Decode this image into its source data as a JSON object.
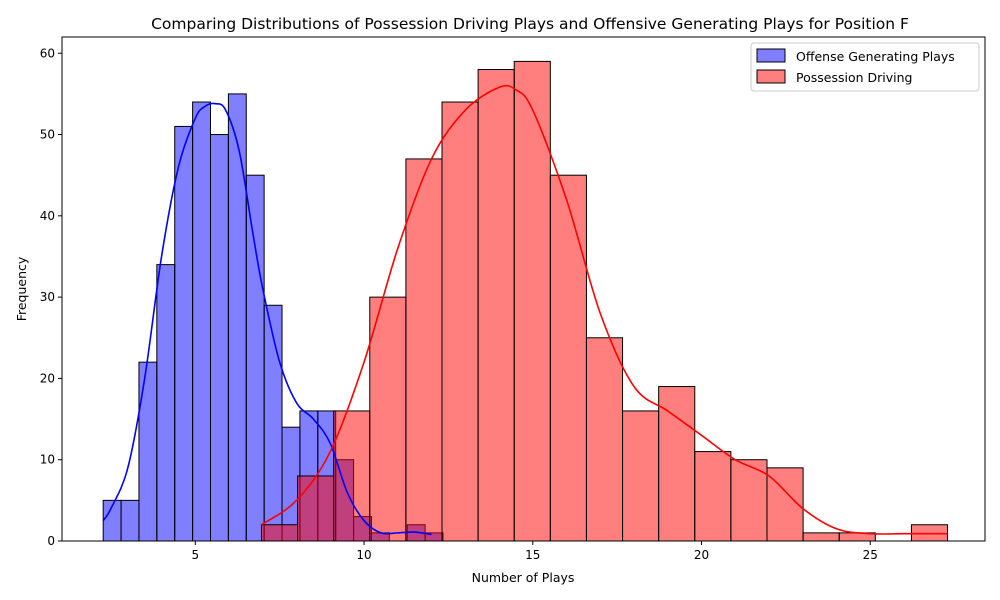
{
  "chart_data": {
    "type": "histogram",
    "title": "Comparing Distributions of Possession Driving Plays and Offensive Generating Plays for Position F",
    "xlabel": "Number of Plays",
    "ylabel": "Frequency",
    "xlim": [
      1.05,
      28.4
    ],
    "ylim": [
      0,
      62
    ],
    "xticks": [
      5,
      10,
      15,
      20,
      25
    ],
    "yticks": [
      0,
      10,
      20,
      30,
      40,
      50,
      60
    ],
    "legend_position": "upper right",
    "series": [
      {
        "name": "Offense Generating Plays",
        "color": "#0000ff",
        "bin_edges": [
          2.27,
          2.8,
          3.33,
          3.86,
          4.39,
          4.92,
          5.45,
          5.98,
          6.51,
          7.04,
          7.57,
          8.1,
          8.63,
          9.16,
          9.69,
          10.22,
          10.75,
          11.28,
          11.81,
          12.34
        ],
        "counts": [
          5,
          5,
          22,
          34,
          51,
          54,
          50,
          55,
          45,
          29,
          14,
          16,
          16,
          10,
          3,
          1,
          0,
          2,
          1
        ],
        "kde_x": [
          2.27,
          2.5,
          3,
          3.5,
          4,
          4.5,
          5,
          5.3,
          5.6,
          5.9,
          6.3,
          6.7,
          7.0,
          7.5,
          8.0,
          8.5,
          9.0,
          9.5,
          10.0,
          10.5,
          11.0,
          11.5,
          12.0
        ],
        "kde_y": [
          2.5,
          4,
          9,
          20,
          35,
          46,
          52,
          53.5,
          53.8,
          53,
          48,
          38,
          31,
          22,
          17,
          15,
          12,
          6,
          2.5,
          1,
          1,
          1.1,
          0.8
        ]
      },
      {
        "name": "Possession Driving",
        "color": "#ff0000",
        "bin_edges": [
          6.96,
          8.03,
          9.1,
          10.17,
          11.24,
          12.31,
          13.38,
          14.45,
          15.52,
          16.59,
          17.66,
          18.73,
          19.8,
          20.87,
          21.94,
          23.01,
          24.08,
          25.15,
          26.22,
          27.29
        ],
        "counts": [
          2,
          8,
          16,
          30,
          47,
          54,
          58,
          59,
          45,
          25,
          16,
          19,
          11,
          10,
          9,
          1,
          1,
          0,
          2
        ],
        "kde_x": [
          6.96,
          8,
          9,
          10,
          11,
          12,
          13,
          14,
          14.5,
          15,
          16,
          17,
          18,
          19,
          20,
          21,
          22,
          23,
          24,
          25,
          26,
          27.29
        ],
        "kde_y": [
          2,
          5,
          11,
          22,
          36,
          47,
          53,
          55.8,
          55.5,
          53,
          42,
          28,
          19,
          16,
          13,
          10,
          8,
          4,
          1.5,
          0.9,
          0.9,
          0.9
        ]
      }
    ]
  }
}
